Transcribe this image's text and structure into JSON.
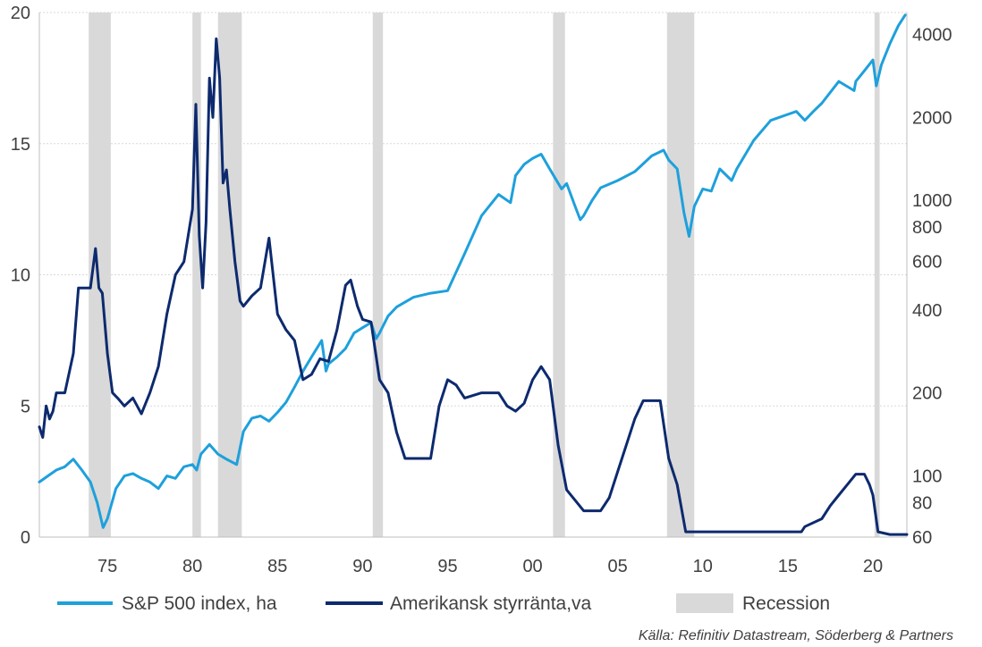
{
  "chart_data": {
    "type": "line",
    "x_range": [
      1971,
      2022
    ],
    "y_left": {
      "range": [
        0,
        20
      ],
      "ticks": [
        0,
        5,
        10,
        15,
        20
      ],
      "labels": [
        "0",
        "5",
        "10",
        "15",
        "20"
      ]
    },
    "y_right": {
      "scale": "log",
      "range": [
        60,
        4800
      ],
      "ticks": [
        60,
        80,
        100,
        200,
        400,
        600,
        800,
        1000,
        2000,
        4000
      ],
      "labels": [
        "60",
        "80",
        "100",
        "200",
        "400",
        "600",
        "800",
        "1000",
        "2000",
        "4000"
      ]
    },
    "x_ticks": [
      1975,
      1980,
      1985,
      1990,
      1995,
      2000,
      2005,
      2010,
      2015,
      2020
    ],
    "x_tick_labels": [
      "75",
      "80",
      "85",
      "90",
      "95",
      "00",
      "05",
      "10",
      "15",
      "20"
    ],
    "grid": "horizontal",
    "legend_position": "bottom",
    "colors": {
      "sp500": "#1ea0dc",
      "rate": "#0d2a6e",
      "recession": "#d9d9d9",
      "grid": "#d9d9d9",
      "axis": "#bfbfbf"
    },
    "recessions": [
      [
        1973.9,
        1975.2
      ],
      [
        1980.0,
        1980.5
      ],
      [
        1981.5,
        1982.9
      ],
      [
        1990.6,
        1991.2
      ],
      [
        2001.2,
        2001.9
      ],
      [
        2007.9,
        2009.5
      ],
      [
        2020.1,
        2020.4
      ]
    ],
    "series": [
      {
        "name": "S&P 500 index, ha",
        "axis": "right",
        "color": "#1ea0dc",
        "x": [
          1971.0,
          1971.5,
          1972.0,
          1972.5,
          1973.0,
          1973.5,
          1974.0,
          1974.4,
          1974.75,
          1975.0,
          1975.5,
          1976.0,
          1976.5,
          1977.0,
          1977.5,
          1978.0,
          1978.5,
          1979.0,
          1979.5,
          1980.0,
          1980.25,
          1980.5,
          1981.0,
          1981.5,
          1982.0,
          1982.6,
          1983.0,
          1983.5,
          1984.0,
          1984.5,
          1985.0,
          1985.5,
          1986.0,
          1986.5,
          1987.0,
          1987.6,
          1987.85,
          1988.0,
          1988.5,
          1989.0,
          1989.5,
          1990.0,
          1990.5,
          1990.8,
          1991.0,
          1991.5,
          1992.0,
          1993.0,
          1994.0,
          1995.0,
          1996.0,
          1997.0,
          1998.0,
          1998.7,
          1999.0,
          1999.5,
          2000.0,
          2000.5,
          2001.0,
          2001.7,
          2002.0,
          2002.5,
          2002.8,
          2003.0,
          2003.5,
          2004.0,
          2005.0,
          2006.0,
          2007.0,
          2007.7,
          2008.0,
          2008.5,
          2008.9,
          2009.2,
          2009.5,
          2010.0,
          2010.5,
          2011.0,
          2011.7,
          2012.0,
          2013.0,
          2014.0,
          2015.0,
          2015.5,
          2016.0,
          2016.5,
          2017.0,
          2018.0,
          2018.9,
          2019.0,
          2019.5,
          2020.0,
          2020.2,
          2020.5,
          2021.0,
          2021.5,
          2021.9
        ],
        "values": [
          95,
          100,
          105,
          108,
          115,
          105,
          95,
          80,
          65,
          70,
          90,
          100,
          102,
          98,
          95,
          90,
          100,
          98,
          108,
          110,
          105,
          120,
          130,
          120,
          115,
          110,
          145,
          162,
          165,
          158,
          170,
          185,
          210,
          240,
          270,
          310,
          240,
          255,
          270,
          290,
          330,
          345,
          360,
          315,
          330,
          380,
          410,
          445,
          460,
          470,
          640,
          880,
          1050,
          980,
          1230,
          1350,
          1420,
          1470,
          1300,
          1100,
          1150,
          950,
          850,
          880,
          1000,
          1110,
          1180,
          1270,
          1450,
          1520,
          1400,
          1300,
          900,
          740,
          950,
          1100,
          1080,
          1300,
          1180,
          1300,
          1650,
          1950,
          2050,
          2100,
          1950,
          2100,
          2250,
          2700,
          2500,
          2700,
          2950,
          3230,
          2600,
          3100,
          3700,
          4300,
          4700
        ]
      },
      {
        "name": "Amerikansk styrränta,va",
        "axis": "left",
        "color": "#0d2a6e",
        "x": [
          1971.0,
          1971.2,
          1971.4,
          1971.6,
          1971.8,
          1972.0,
          1972.5,
          1973.0,
          1973.3,
          1973.6,
          1974.0,
          1974.3,
          1974.5,
          1974.7,
          1975.0,
          1975.3,
          1975.6,
          1976.0,
          1976.5,
          1977.0,
          1977.5,
          1978.0,
          1978.5,
          1979.0,
          1979.5,
          1980.0,
          1980.2,
          1980.4,
          1980.6,
          1980.8,
          1981.0,
          1981.2,
          1981.4,
          1981.6,
          1981.8,
          1982.0,
          1982.2,
          1982.5,
          1982.8,
          1983.0,
          1983.5,
          1984.0,
          1984.5,
          1985.0,
          1985.5,
          1986.0,
          1986.5,
          1987.0,
          1987.5,
          1988.0,
          1988.5,
          1989.0,
          1989.3,
          1989.7,
          1990.0,
          1990.5,
          1991.0,
          1991.5,
          1992.0,
          1992.5,
          1993.0,
          1994.0,
          1994.5,
          1995.0,
          1995.5,
          1996.0,
          1997.0,
          1998.0,
          1998.5,
          1999.0,
          1999.5,
          2000.0,
          2000.5,
          2001.0,
          2001.5,
          2002.0,
          2003.0,
          2003.5,
          2004.0,
          2004.5,
          2005.0,
          2005.5,
          2006.0,
          2006.5,
          2007.0,
          2007.5,
          2008.0,
          2008.5,
          2009.0,
          2010.0,
          2012.0,
          2015.8,
          2016.0,
          2017.0,
          2017.5,
          2018.0,
          2018.5,
          2019.0,
          2019.5,
          2019.8,
          2020.0,
          2020.3,
          2021.0,
          2022.0
        ],
        "values": [
          4.2,
          3.8,
          5.0,
          4.5,
          4.8,
          5.5,
          5.5,
          7.0,
          9.5,
          9.5,
          9.5,
          11.0,
          9.5,
          9.3,
          7.0,
          5.5,
          5.3,
          5.0,
          5.3,
          4.7,
          5.5,
          6.5,
          8.5,
          10.0,
          10.5,
          12.5,
          16.5,
          11.5,
          9.5,
          12.0,
          17.5,
          16.0,
          19.0,
          17.5,
          13.5,
          14.0,
          12.5,
          10.5,
          9.0,
          8.8,
          9.2,
          9.5,
          11.4,
          8.5,
          7.9,
          7.5,
          6.0,
          6.2,
          6.8,
          6.7,
          7.9,
          9.6,
          9.8,
          8.8,
          8.3,
          8.2,
          6.0,
          5.5,
          4.0,
          3.0,
          3.0,
          3.0,
          5.0,
          6.0,
          5.8,
          5.3,
          5.5,
          5.5,
          5.0,
          4.8,
          5.1,
          6.0,
          6.5,
          6.0,
          3.5,
          1.8,
          1.0,
          1.0,
          1.0,
          1.5,
          2.5,
          3.5,
          4.5,
          5.2,
          5.2,
          5.2,
          3.0,
          2.0,
          0.2,
          0.2,
          0.2,
          0.2,
          0.4,
          0.7,
          1.2,
          1.6,
          2.0,
          2.4,
          2.4,
          2.0,
          1.6,
          0.2,
          0.1,
          0.1
        ]
      }
    ],
    "legend": {
      "sp500": "S&P 500 index, ha",
      "rate": "Amerikansk styrränta,va",
      "recession": "Recession"
    },
    "source": "Källa: Refinitiv Datastream, Söderberg & Partners"
  }
}
